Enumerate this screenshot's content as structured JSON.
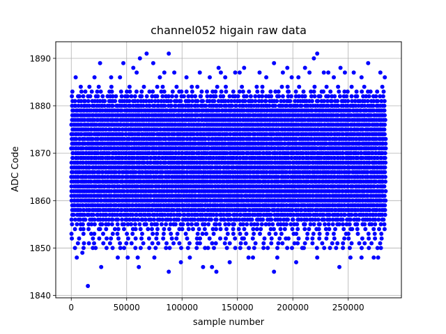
{
  "chart_data": {
    "type": "scatter",
    "title": "channel052 higain raw data",
    "xlabel": "sample number",
    "ylabel": "ADC Code",
    "xlim": [
      -14000,
      298000
    ],
    "ylim": [
      1839.5,
      1893.5
    ],
    "xticks": [
      0,
      50000,
      100000,
      150000,
      200000,
      250000
    ],
    "yticks": [
      1840,
      1850,
      1860,
      1870,
      1880,
      1890
    ],
    "grid": true,
    "marker_color": "#0000ff",
    "x_range": [
      0,
      284000
    ],
    "dense_band": [
      1854,
      1884
    ],
    "series": [
      {
        "points": [
          [
            15000,
            1842
          ],
          [
            27000,
            1846
          ],
          [
            61000,
            1846
          ],
          [
            88000,
            1845
          ],
          [
            99000,
            1847
          ],
          [
            119000,
            1846
          ],
          [
            127000,
            1846
          ],
          [
            131000,
            1845
          ],
          [
            143000,
            1847
          ],
          [
            183000,
            1845
          ],
          [
            203000,
            1847
          ],
          [
            242000,
            1846
          ],
          [
            186000,
            1848
          ],
          [
            222000,
            1848
          ],
          [
            252000,
            1848
          ],
          [
            262000,
            1848
          ],
          [
            273000,
            1848
          ],
          [
            277000,
            1848
          ],
          [
            5000,
            1848
          ],
          [
            10000,
            1849
          ],
          [
            42000,
            1848
          ],
          [
            51000,
            1848
          ],
          [
            60000,
            1848
          ],
          [
            75000,
            1848
          ],
          [
            107000,
            1848
          ],
          [
            160000,
            1848
          ],
          [
            164000,
            1848
          ],
          [
            62000,
            1890
          ],
          [
            68000,
            1891
          ],
          [
            88000,
            1891
          ],
          [
            219000,
            1890
          ],
          [
            222000,
            1891
          ],
          [
            47000,
            1889
          ],
          [
            74000,
            1889
          ],
          [
            26000,
            1889
          ],
          [
            183000,
            1889
          ],
          [
            211000,
            1888
          ],
          [
            268000,
            1889
          ],
          [
            195000,
            1888
          ],
          [
            243000,
            1888
          ],
          [
            156000,
            1888
          ],
          [
            133000,
            1888
          ],
          [
            84000,
            1887
          ],
          [
            56000,
            1888
          ],
          [
            116000,
            1887
          ],
          [
            135000,
            1887
          ],
          [
            152000,
            1887
          ],
          [
            170000,
            1887
          ],
          [
            191000,
            1887
          ],
          [
            199000,
            1886
          ],
          [
            228000,
            1887
          ],
          [
            232000,
            1887
          ],
          [
            255000,
            1887
          ],
          [
            279000,
            1887
          ],
          [
            4000,
            1886
          ],
          [
            21000,
            1886
          ],
          [
            36000,
            1886
          ],
          [
            44000,
            1886
          ],
          [
            59000,
            1887
          ],
          [
            80000,
            1886
          ],
          [
            93000,
            1887
          ],
          [
            104000,
            1886
          ],
          [
            125000,
            1886
          ],
          [
            139000,
            1886
          ],
          [
            148000,
            1887
          ],
          [
            176000,
            1886
          ],
          [
            205000,
            1886
          ],
          [
            215000,
            1887
          ],
          [
            237000,
            1886
          ],
          [
            247000,
            1887
          ],
          [
            262000,
            1886
          ],
          [
            283000,
            1886
          ]
        ]
      }
    ]
  }
}
